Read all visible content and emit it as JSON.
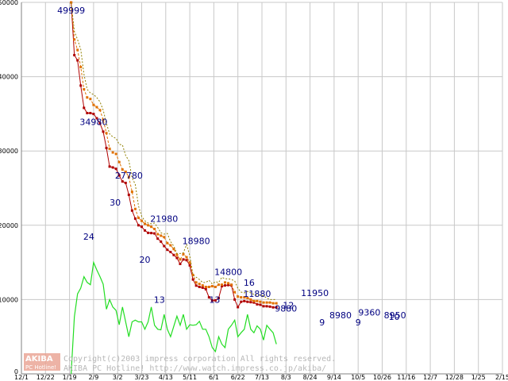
{
  "chart_data": {
    "type": "line",
    "title": "",
    "xlabel": "",
    "ylabel": "",
    "ylim": [
      0,
      50000
    ],
    "y2lim": [
      0,
      65
    ],
    "grid": true,
    "legend": "none",
    "yticks": [
      "0",
      "10000",
      "20000",
      "30000",
      "40000",
      "50000"
    ],
    "xticks": [
      "12/1",
      "12/22",
      "1/19",
      "2/9",
      "3/2",
      "3/23",
      "4/13",
      "5/11",
      "6/1",
      "6/22",
      "7/13",
      "8/3",
      "8/24",
      "9/14",
      "10/5",
      "10/26",
      "11/16",
      "12/7",
      "12/28",
      "1/25",
      "2/15"
    ],
    "x": [
      6.2,
      6.6,
      7.0,
      7.4,
      7.8,
      8.2,
      8.6,
      9.0,
      9.4,
      9.8,
      10.2,
      10.6,
      11.0,
      11.4,
      11.8,
      12.2,
      12.6,
      13.0,
      13.4,
      13.8,
      14.2,
      14.6,
      15.0,
      15.4,
      15.8,
      16.2,
      16.6,
      17.0,
      17.4,
      17.8,
      18.2,
      18.6,
      19.0,
      19.4,
      19.8,
      20.2,
      20.6,
      21.0,
      21.4,
      21.8,
      22.2,
      22.6,
      23.0,
      23.4,
      23.8,
      24.2,
      24.6,
      25.0,
      25.4,
      25.8,
      26.2,
      26.6,
      27.0,
      27.4,
      27.8,
      28.2,
      28.6,
      29.0,
      29.4,
      29.8,
      30.2,
      30.6,
      31.0,
      31.4,
      31.8
    ],
    "series": [
      {
        "role": "min-price",
        "color": "#b00000",
        "values": [
          49999,
          42900,
          42200,
          38800,
          35800,
          35100,
          35100,
          34980,
          34400,
          33700,
          32600,
          30400,
          27900,
          27780,
          27600,
          26700,
          25900,
          25700,
          24100,
          21980,
          20900,
          20000,
          19800,
          19300,
          18980,
          18950,
          18900,
          18200,
          17800,
          17200,
          16700,
          16400,
          16000,
          15600,
          14800,
          15400,
          15300,
          14600,
          12700,
          11880,
          11700,
          11600,
          11400,
          10300,
          9880,
          9900,
          10200,
          11800,
          11900,
          11950,
          11900,
          10000,
          8980,
          9700,
          9800,
          9700,
          9650,
          9600,
          9360,
          9300,
          9100,
          9100,
          9050,
          8950,
          8950
        ]
      },
      {
        "role": "avg-price",
        "color": "#e07000",
        "values": [
          49999,
          45000,
          43600,
          41300,
          38300,
          37200,
          37000,
          36200,
          35900,
          35500,
          34200,
          32400,
          30300,
          29800,
          29600,
          28500,
          27500,
          27200,
          26500,
          24500,
          22200,
          21000,
          20600,
          20200,
          20000,
          19800,
          19500,
          18800,
          18600,
          18400,
          17600,
          17300,
          16800,
          16000,
          15400,
          16100,
          15700,
          15000,
          13300,
          12300,
          12100,
          11900,
          11700,
          11700,
          11800,
          11700,
          12000,
          12000,
          12300,
          12200,
          12000,
          11000,
          10400,
          10300,
          10300,
          10200,
          10000,
          9800,
          9800,
          9700,
          9600,
          9600,
          9600,
          9500,
          9500
        ]
      },
      {
        "role": "max-price",
        "color": "#908000",
        "values": [
          49999,
          46100,
          45000,
          43700,
          40300,
          38300,
          37800,
          37600,
          37200,
          36600,
          35500,
          33700,
          32300,
          31900,
          31700,
          30900,
          30800,
          29400,
          28700,
          26400,
          25500,
          22600,
          21200,
          20600,
          20300,
          20200,
          20300,
          19700,
          19000,
          18800,
          18900,
          17800,
          17200,
          16200,
          16200,
          16300,
          17400,
          15900,
          13300,
          13000,
          12700,
          12300,
          12300,
          12600,
          12100,
          12400,
          12300,
          13000,
          12800,
          12800,
          12700,
          12500,
          11500,
          11000,
          10900,
          11100,
          10900,
          10700,
          10600,
          10600,
          10500,
          10200,
          10000,
          10000,
          10000
        ]
      },
      {
        "role": "shop-count",
        "color": "#22dd22",
        "axis": "right",
        "values": [
          0,
          10,
          14,
          15,
          17,
          16,
          15.6,
          19.5,
          18.2,
          17,
          15.7,
          11.3,
          13,
          11.7,
          11.1,
          8.6,
          11.7,
          9.1,
          6.5,
          9.1,
          9.4,
          9.1,
          9.1,
          7.8,
          9.1,
          11.7,
          8.5,
          7.8,
          7.7,
          10.4,
          7.8,
          6.5,
          8.3,
          10.1,
          8.5,
          10.4,
          7.8,
          8.6,
          8.5,
          8.6,
          9.2,
          7.8,
          7.8,
          6.5,
          4.6,
          3.9,
          6.5,
          5.2,
          4.6,
          7.8,
          8.5,
          9.4,
          6.5,
          7.2,
          7.8,
          10.4,
          7.8,
          7.2,
          8.4,
          7.8,
          5.9,
          8.5,
          7.8,
          7.2,
          5.2
        ]
      }
    ],
    "price_labels": [
      {
        "x": 6.2,
        "value": 49999,
        "text": "49999"
      },
      {
        "x": 9.0,
        "value": 34980,
        "text": "34980"
      },
      {
        "x": 13.4,
        "value": 27780,
        "text": "27780"
      },
      {
        "x": 17.8,
        "value": 21980,
        "text": "21980"
      },
      {
        "x": 21.8,
        "value": 18980,
        "text": "18980"
      },
      {
        "x": 25.8,
        "value": 14800,
        "text": "14800"
      },
      {
        "x": 29.4,
        "value": 11880,
        "text": "11880"
      },
      {
        "x": 33.0,
        "value": 9880,
        "text": "9880"
      },
      {
        "x": 36.6,
        "value": 11950,
        "text": "11950"
      },
      {
        "x": 39.8,
        "value": 8980,
        "text": "8980"
      },
      {
        "x": 43.4,
        "value": 9360,
        "text": "9360"
      },
      {
        "x": 46.6,
        "value": 8950,
        "text": "8950"
      }
    ],
    "count_labels": [
      {
        "x": 8.4,
        "value": 24,
        "text": "24"
      },
      {
        "x": 11.7,
        "value": 30,
        "text": "30"
      },
      {
        "x": 15.4,
        "value": 20,
        "text": "20"
      },
      {
        "x": 17.2,
        "value": 13,
        "text": "13"
      },
      {
        "x": 24.1,
        "value": 13,
        "text": "13"
      },
      {
        "x": 28.4,
        "value": 16,
        "text": "16"
      },
      {
        "x": 33.3,
        "value": 12,
        "text": "12"
      },
      {
        "x": 37.5,
        "value": 9,
        "text": "9"
      },
      {
        "x": 42.0,
        "value": 9,
        "text": "9"
      },
      {
        "x": 46.5,
        "value": 10,
        "text": "10"
      }
    ]
  },
  "watermark": {
    "logo": "AKIBA",
    "logo_sub": "PC Hotline!",
    "line1": "Copyright(c)2003 impress corporation All rights reserved.",
    "line2": "AKIBA PC Hotline!  http://www.watch.impress.co.jp/akiba/"
  }
}
